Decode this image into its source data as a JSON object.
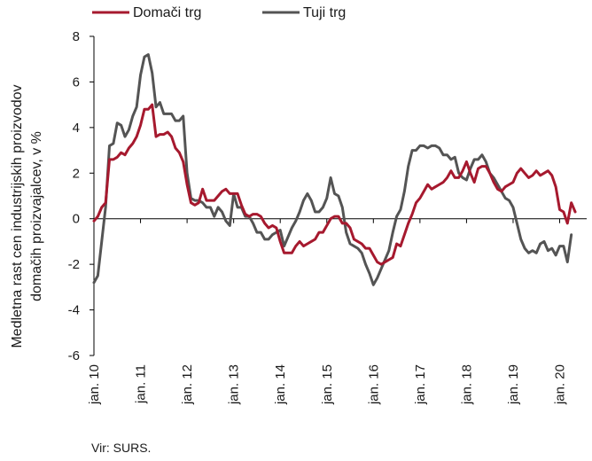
{
  "chart_data": {
    "type": "line",
    "ylabel_lines": [
      "Medletna rast cen industrijskih proizvodov",
      "domačih proizvajalcev, v %"
    ],
    "source": "Vir: SURS.",
    "ylim": [
      -6,
      8
    ],
    "yticks": [
      -6,
      -4,
      -2,
      0,
      2,
      4,
      6,
      8
    ],
    "xlim": [
      2010.0,
      2020.58
    ],
    "xticks": [
      {
        "value": 2010,
        "label": "jan. 10"
      },
      {
        "value": 2011,
        "label": "jan. 11"
      },
      {
        "value": 2012,
        "label": "jan. 12"
      },
      {
        "value": 2013,
        "label": "jan. 13"
      },
      {
        "value": 2014,
        "label": "jan. 14"
      },
      {
        "value": 2015,
        "label": "jan. 15"
      },
      {
        "value": 2016,
        "label": "jan. 16"
      },
      {
        "value": 2017,
        "label": "jan. 17"
      },
      {
        "value": 2018,
        "label": "jan. 18"
      },
      {
        "value": 2019,
        "label": "jan. 19"
      },
      {
        "value": 2020,
        "label": "jan. 20"
      }
    ],
    "grid": false,
    "legend_position": "top",
    "series": [
      {
        "name": "Domači trg",
        "color": "#a6192e",
        "start": 2010.0,
        "step_months": 1,
        "values": [
          -0.1,
          0.1,
          0.5,
          0.7,
          2.6,
          2.6,
          2.7,
          2.9,
          2.8,
          3.1,
          3.3,
          3.6,
          4.1,
          4.8,
          4.8,
          5.0,
          3.6,
          3.7,
          3.7,
          3.8,
          3.6,
          3.1,
          2.9,
          2.5,
          1.5,
          0.7,
          0.6,
          0.7,
          1.3,
          0.8,
          0.8,
          0.8,
          1.0,
          1.2,
          1.3,
          1.1,
          1.1,
          1.1,
          0.6,
          0.2,
          0.1,
          0.2,
          0.2,
          0.1,
          -0.2,
          -0.4,
          -0.3,
          -0.4,
          -1.0,
          -1.5,
          -1.5,
          -1.5,
          -1.2,
          -1.0,
          -1.2,
          -1.1,
          -1.0,
          -0.9,
          -0.6,
          -0.6,
          -0.3,
          0.0,
          0.1,
          0.1,
          -0.2,
          -0.2,
          -0.4,
          -0.9,
          -1.0,
          -1.1,
          -1.3,
          -1.3,
          -1.6,
          -1.9,
          -2.0,
          -1.9,
          -1.8,
          -1.7,
          -1.1,
          -1.2,
          -0.7,
          -0.2,
          0.2,
          0.7,
          0.9,
          1.2,
          1.5,
          1.3,
          1.4,
          1.5,
          1.6,
          1.8,
          2.1,
          1.8,
          1.8,
          2.1,
          2.5,
          2.0,
          1.6,
          2.2,
          2.3,
          2.3,
          2.0,
          1.6,
          1.3,
          1.2,
          1.4,
          1.5,
          1.6,
          2.0,
          2.2,
          2.0,
          1.8,
          1.9,
          2.1,
          1.9,
          2.0,
          2.1,
          1.9,
          1.4,
          0.4,
          0.3,
          -0.2,
          0.7,
          0.3
        ]
      },
      {
        "name": "Tuji trg",
        "color": "#545454",
        "start": 2010.0,
        "step_months": 1,
        "values": [
          -2.8,
          -2.5,
          -1.0,
          0.5,
          3.2,
          3.3,
          4.2,
          4.1,
          3.6,
          3.9,
          4.5,
          4.9,
          6.3,
          7.1,
          7.2,
          6.4,
          4.9,
          5.1,
          4.6,
          4.6,
          4.6,
          4.3,
          4.3,
          4.5,
          2.0,
          0.9,
          0.8,
          0.8,
          0.7,
          0.5,
          0.5,
          0.1,
          0.5,
          0.3,
          -0.1,
          -0.3,
          1.1,
          0.5,
          0.5,
          0.1,
          0.1,
          -0.2,
          -0.6,
          -0.6,
          -0.9,
          -0.9,
          -0.7,
          -0.6,
          -0.5,
          -1.2,
          -0.8,
          -0.4,
          -0.1,
          0.3,
          0.8,
          1.1,
          0.8,
          0.3,
          0.3,
          0.5,
          0.9,
          1.8,
          1.1,
          1.0,
          0.5,
          -0.6,
          -1.1,
          -1.2,
          -1.3,
          -1.5,
          -2.0,
          -2.4,
          -2.9,
          -2.6,
          -2.2,
          -1.8,
          -1.4,
          -0.6,
          0.1,
          0.4,
          1.2,
          2.3,
          3.0,
          3.0,
          3.2,
          3.2,
          3.1,
          3.2,
          3.2,
          3.1,
          2.8,
          2.8,
          2.6,
          2.7,
          2.0,
          1.8,
          1.7,
          2.2,
          2.6,
          2.6,
          2.8,
          2.5,
          2.0,
          1.8,
          1.5,
          1.2,
          0.9,
          0.8,
          0.5,
          -0.2,
          -0.9,
          -1.3,
          -1.5,
          -1.4,
          -1.5,
          -1.1,
          -1.0,
          -1.4,
          -1.3,
          -1.6,
          -1.2,
          -1.2,
          -1.9,
          -0.7
        ]
      }
    ]
  }
}
